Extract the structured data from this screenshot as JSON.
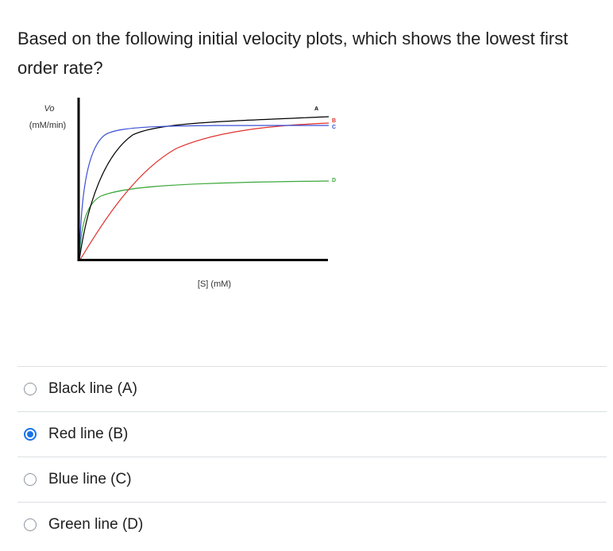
{
  "question": {
    "text": "Based on the following initial velocity plots, which shows the lowest first order rate?"
  },
  "figure": {
    "y_label_line1": "Vo",
    "y_label_line2": "(mM/min)",
    "x_label": "[S]  (mM)",
    "curves": [
      {
        "label": "A",
        "color": "#000000"
      },
      {
        "label": "B",
        "color": "#e0302a"
      },
      {
        "label": "C",
        "color": "#3b4fd6"
      },
      {
        "label": "D",
        "color": "#3aa83a"
      }
    ]
  },
  "answers": [
    {
      "label": "Black line (A)",
      "selected": false
    },
    {
      "label": "Red line (B)",
      "selected": true
    },
    {
      "label": "Blue line (C)",
      "selected": false
    },
    {
      "label": "Green line (D)",
      "selected": false
    }
  ],
  "colors": {
    "accent": "#1a73e8",
    "divider": "#dcdfe3"
  }
}
